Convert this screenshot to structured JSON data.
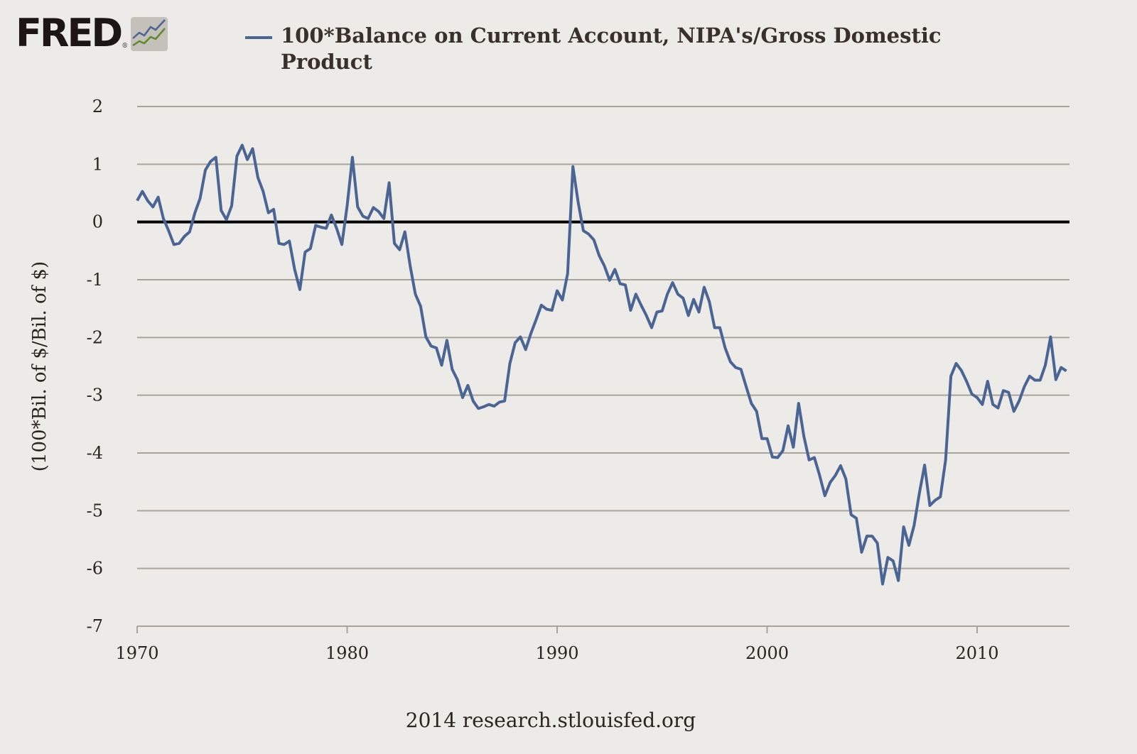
{
  "logo": {
    "text": "FRED",
    "mark": "®"
  },
  "legend": {
    "label": "100*Balance on Current Account, NIPA's/Gross Domestic Product",
    "color": "#4a6593"
  },
  "footer": "2014 research.stlouisfed.org",
  "chart_data": {
    "type": "line",
    "title": "100*Balance on Current Account, NIPA's/Gross Domestic Product",
    "ylabel": "(100*Bil. of $/Bil. of $)",
    "xlabel": "",
    "x_start": "1970-Q1",
    "frequency": "quarterly",
    "xlim": [
      1970,
      2014.5
    ],
    "ylim": [
      -7,
      2
    ],
    "xticks": [
      1970,
      1980,
      1990,
      2000,
      2010
    ],
    "yticks": [
      2,
      1,
      0,
      -1,
      -2,
      -3,
      -4,
      -5,
      -6,
      -7
    ],
    "grid": true,
    "zero_line": true,
    "line_color": "#4a6593",
    "series": [
      {
        "name": "100*Balance on Current Account, NIPA's/Gross Domestic Product",
        "values": [
          0.37,
          0.53,
          0.37,
          0.26,
          0.43,
          0.06,
          -0.15,
          -0.39,
          -0.37,
          -0.25,
          -0.17,
          0.16,
          0.41,
          0.9,
          1.05,
          1.12,
          0.2,
          0.04,
          0.28,
          1.14,
          1.33,
          1.08,
          1.27,
          0.77,
          0.53,
          0.16,
          0.22,
          -0.37,
          -0.39,
          -0.33,
          -0.82,
          -1.17,
          -0.52,
          -0.46,
          -0.06,
          -0.09,
          -0.11,
          0.12,
          -0.11,
          -0.39,
          0.28,
          1.12,
          0.26,
          0.1,
          0.06,
          0.25,
          0.18,
          0.06,
          0.68,
          -0.37,
          -0.48,
          -0.17,
          -0.76,
          -1.25,
          -1.46,
          -1.99,
          -2.15,
          -2.18,
          -2.48,
          -2.05,
          -2.55,
          -2.73,
          -3.04,
          -2.83,
          -3.1,
          -3.23,
          -3.2,
          -3.16,
          -3.19,
          -3.12,
          -3.1,
          -2.45,
          -2.09,
          -1.99,
          -2.21,
          -1.93,
          -1.69,
          -1.44,
          -1.51,
          -1.53,
          -1.19,
          -1.35,
          -0.89,
          0.96,
          0.34,
          -0.15,
          -0.21,
          -0.31,
          -0.58,
          -0.76,
          -1.01,
          -0.82,
          -1.07,
          -1.09,
          -1.53,
          -1.25,
          -1.44,
          -1.62,
          -1.83,
          -1.56,
          -1.54,
          -1.25,
          -1.05,
          -1.25,
          -1.32,
          -1.62,
          -1.34,
          -1.56,
          -1.13,
          -1.38,
          -1.83,
          -1.83,
          -2.18,
          -2.42,
          -2.52,
          -2.55,
          -2.85,
          -3.14,
          -3.28,
          -3.75,
          -3.75,
          -4.07,
          -4.08,
          -3.96,
          -3.53,
          -3.9,
          -3.14,
          -3.71,
          -4.12,
          -4.08,
          -4.39,
          -4.74,
          -4.51,
          -4.39,
          -4.22,
          -4.45,
          -5.07,
          -5.13,
          -5.72,
          -5.44,
          -5.44,
          -5.56,
          -6.27,
          -5.81,
          -5.87,
          -6.21,
          -5.28,
          -5.6,
          -5.25,
          -4.7,
          -4.21,
          -4.91,
          -4.82,
          -4.76,
          -4.12,
          -2.67,
          -2.45,
          -2.57,
          -2.76,
          -2.98,
          -3.04,
          -3.16,
          -2.76,
          -3.16,
          -3.22,
          -2.92,
          -2.95,
          -3.28,
          -3.1,
          -2.85,
          -2.67,
          -2.74,
          -2.74,
          -2.48,
          -1.99,
          -2.73,
          -2.52,
          -2.58
        ]
      }
    ]
  }
}
